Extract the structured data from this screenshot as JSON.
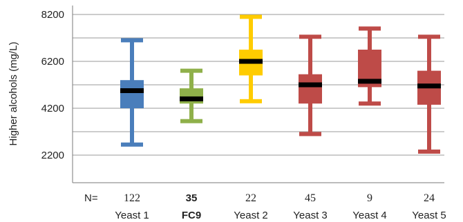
{
  "chart_data": {
    "type": "boxplot",
    "ylabel": "Higher alcohols (mg/L)",
    "yticks": [
      2200,
      4200,
      6200,
      8200
    ],
    "ylim": [
      1100,
      8400
    ],
    "grid": true,
    "n_prefix": "N=",
    "categories": [
      "Yeast 1",
      "FC9",
      "Yeast 2",
      "Yeast 3",
      "Yeast 4",
      "Yeast 5"
    ],
    "n": [
      "122",
      "35",
      "22",
      "45",
      "9",
      "24"
    ],
    "bold": [
      false,
      true,
      false,
      false,
      false,
      false
    ],
    "colors": [
      "#4a7ebb",
      "#8fb04a",
      "#ffcc00",
      "#be4b48",
      "#be4b48",
      "#be4b48"
    ],
    "boxes": [
      {
        "min": 2650,
        "q1": 4200,
        "median": 4950,
        "q3": 5400,
        "max": 7100
      },
      {
        "min": 3650,
        "q1": 4400,
        "median": 4600,
        "q3": 5050,
        "max": 5800
      },
      {
        "min": 4500,
        "q1": 5600,
        "median": 6200,
        "q3": 6700,
        "max": 8100
      },
      {
        "min": 3100,
        "q1": 4400,
        "median": 5200,
        "q3": 5650,
        "max": 7250
      },
      {
        "min": 4400,
        "q1": 5100,
        "median": 5350,
        "q3": 6700,
        "max": 7600
      },
      {
        "min": 2350,
        "q1": 4350,
        "median": 5150,
        "q3": 5800,
        "max": 7250
      }
    ]
  }
}
